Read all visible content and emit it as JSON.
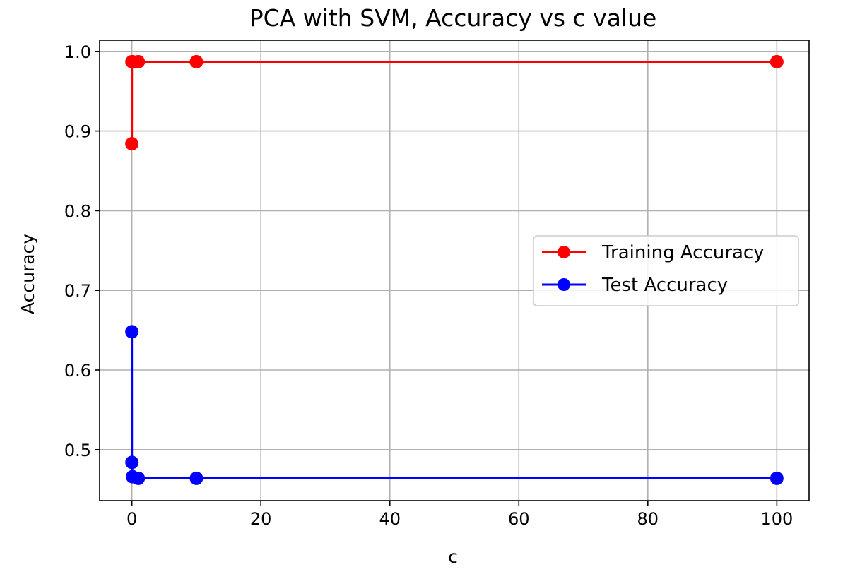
{
  "chart_data": {
    "type": "line",
    "title": "PCA with SVM, Accuracy vs c value",
    "xlabel": "c",
    "ylabel": "Accuracy",
    "xlim": [
      -5,
      105
    ],
    "ylim": [
      0.436,
      1.014
    ],
    "xticks": [
      0,
      20,
      40,
      60,
      80,
      100
    ],
    "yticks": [
      0.5,
      0.6,
      0.7,
      0.8,
      0.9,
      1.0
    ],
    "xtick_labels": [
      "0",
      "20",
      "40",
      "60",
      "80",
      "100"
    ],
    "ytick_labels": [
      "0.5",
      "0.6",
      "0.7",
      "0.8",
      "0.9",
      "1.0"
    ],
    "grid": true,
    "legend_position": "center-right",
    "x": [
      0.001,
      0.01,
      0.1,
      1,
      10,
      100
    ],
    "series": [
      {
        "name": "Training Accuracy",
        "color": "#ff0000",
        "values": [
          0.884,
          0.987,
          0.987,
          0.987,
          0.987,
          0.987
        ]
      },
      {
        "name": "Test Accuracy",
        "color": "#0000ff",
        "values": [
          0.648,
          0.484,
          0.466,
          0.464,
          0.464,
          0.464
        ]
      }
    ]
  }
}
